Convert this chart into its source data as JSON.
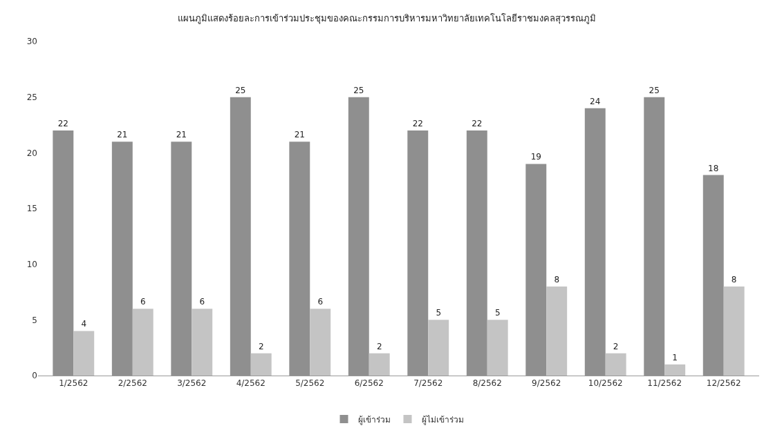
{
  "chart_data": {
    "type": "bar",
    "title": "แผนภูมิแสดงร้อยละการเข้าร่วมประชุมของคณะกรรมการบริหารมหาวิทยาลัยเทคโนโลยีราชมงคลสุวรรณภูมิ",
    "categories": [
      "1/2562",
      "2/2562",
      "3/2562",
      "4/2562",
      "5/2562",
      "6/2562",
      "7/2562",
      "8/2562",
      "9/2562",
      "10/2562",
      "11/2562",
      "12/2562"
    ],
    "series": [
      {
        "name": "ผู้เข้าร่วม",
        "color": "#8f8f8f",
        "values": [
          22,
          21,
          21,
          25,
          21,
          25,
          22,
          22,
          19,
          24,
          25,
          18
        ]
      },
      {
        "name": "ผู้ไม่เข้าร่วม",
        "color": "#c4c4c4",
        "values": [
          4,
          6,
          6,
          2,
          6,
          2,
          5,
          5,
          8,
          2,
          1,
          8
        ]
      }
    ],
    "ylim": [
      0,
      30
    ],
    "yticks": [
      0,
      5,
      10,
      15,
      20,
      25,
      30
    ],
    "grid": false,
    "legend": "bottom",
    "data_labels": true
  }
}
